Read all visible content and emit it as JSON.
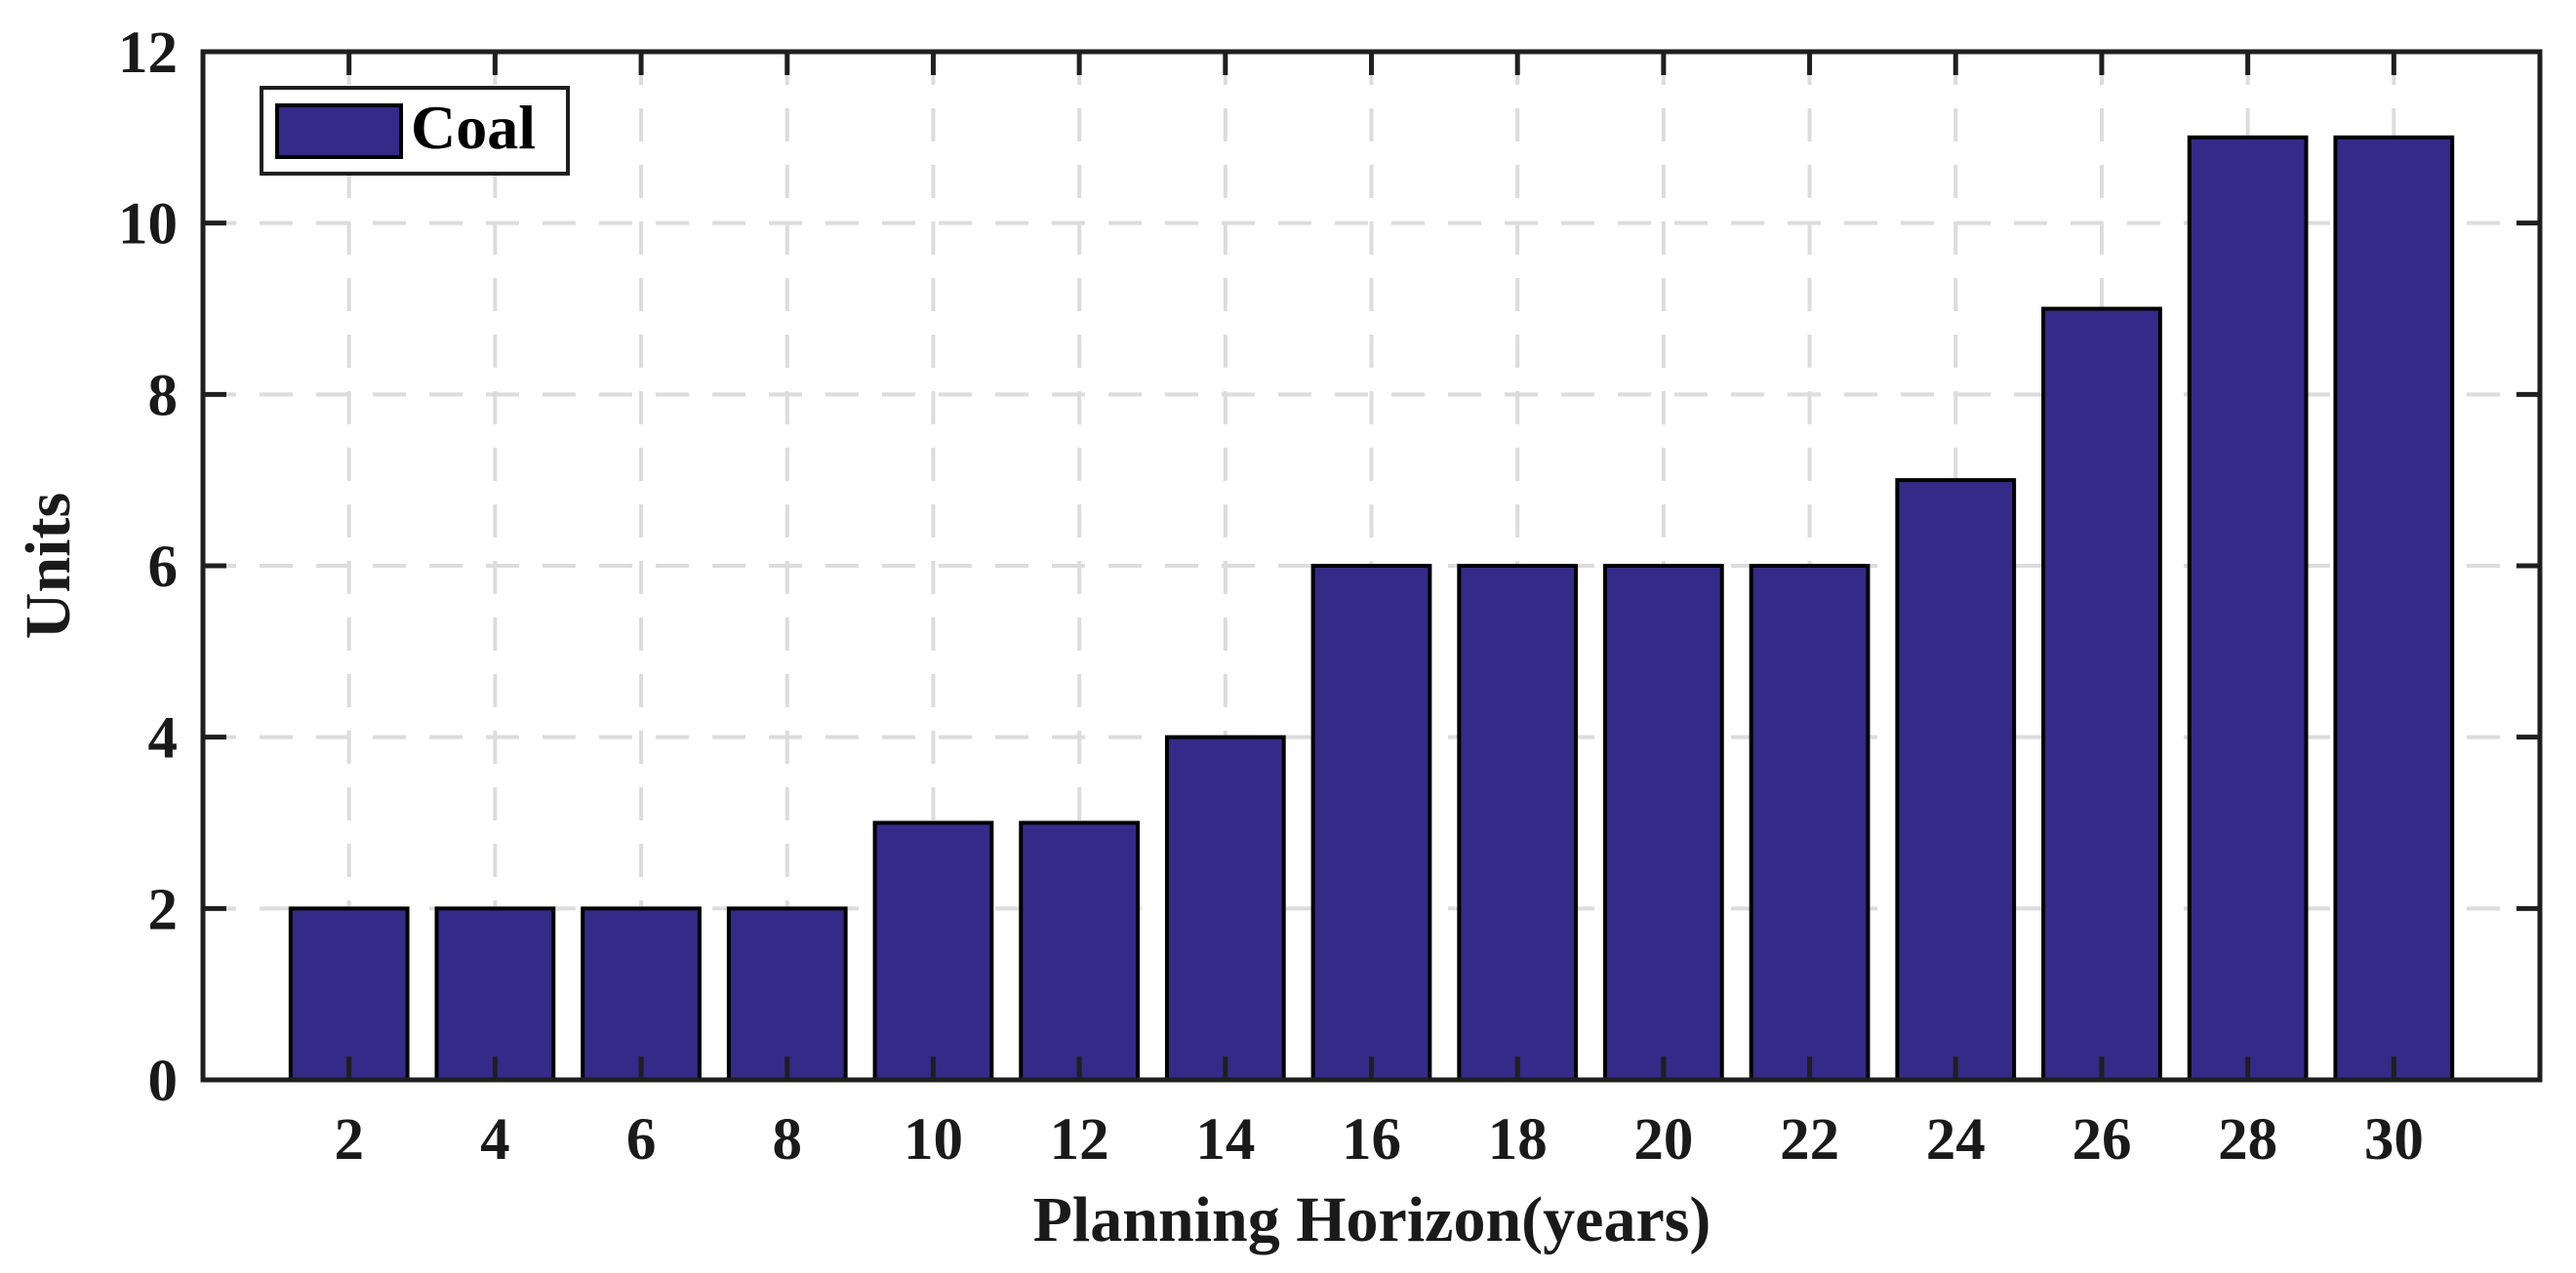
{
  "chart_data": {
    "type": "bar",
    "title": "",
    "xlabel": "Planning Horizon(years)",
    "ylabel": "Units",
    "categories": [
      2,
      4,
      6,
      8,
      10,
      12,
      14,
      16,
      18,
      20,
      22,
      24,
      26,
      28,
      30
    ],
    "series": [
      {
        "name": "Coal",
        "values": [
          2,
          2,
          2,
          2,
          3,
          3,
          4,
          6,
          6,
          6,
          6,
          7,
          9,
          11,
          11
        ]
      }
    ],
    "xticks": [
      2,
      4,
      6,
      8,
      10,
      12,
      14,
      16,
      18,
      20,
      22,
      24,
      26,
      28,
      30
    ],
    "yticks": [
      0,
      2,
      4,
      6,
      8,
      10,
      12
    ],
    "xlim": [
      0,
      32
    ],
    "ylim": [
      0,
      12
    ],
    "bar_width_data_units": 1.6,
    "grid": "dashed-both-axes",
    "legend_position": "top-left-inside",
    "colors": {
      "bar_fill": "#352A87",
      "bar_edge": "#000000",
      "grid_line": "#DCDCDC",
      "axis_line": "#1F1F1F",
      "tick_text": "#1A1A1A",
      "background": "#FFFFFF"
    }
  }
}
